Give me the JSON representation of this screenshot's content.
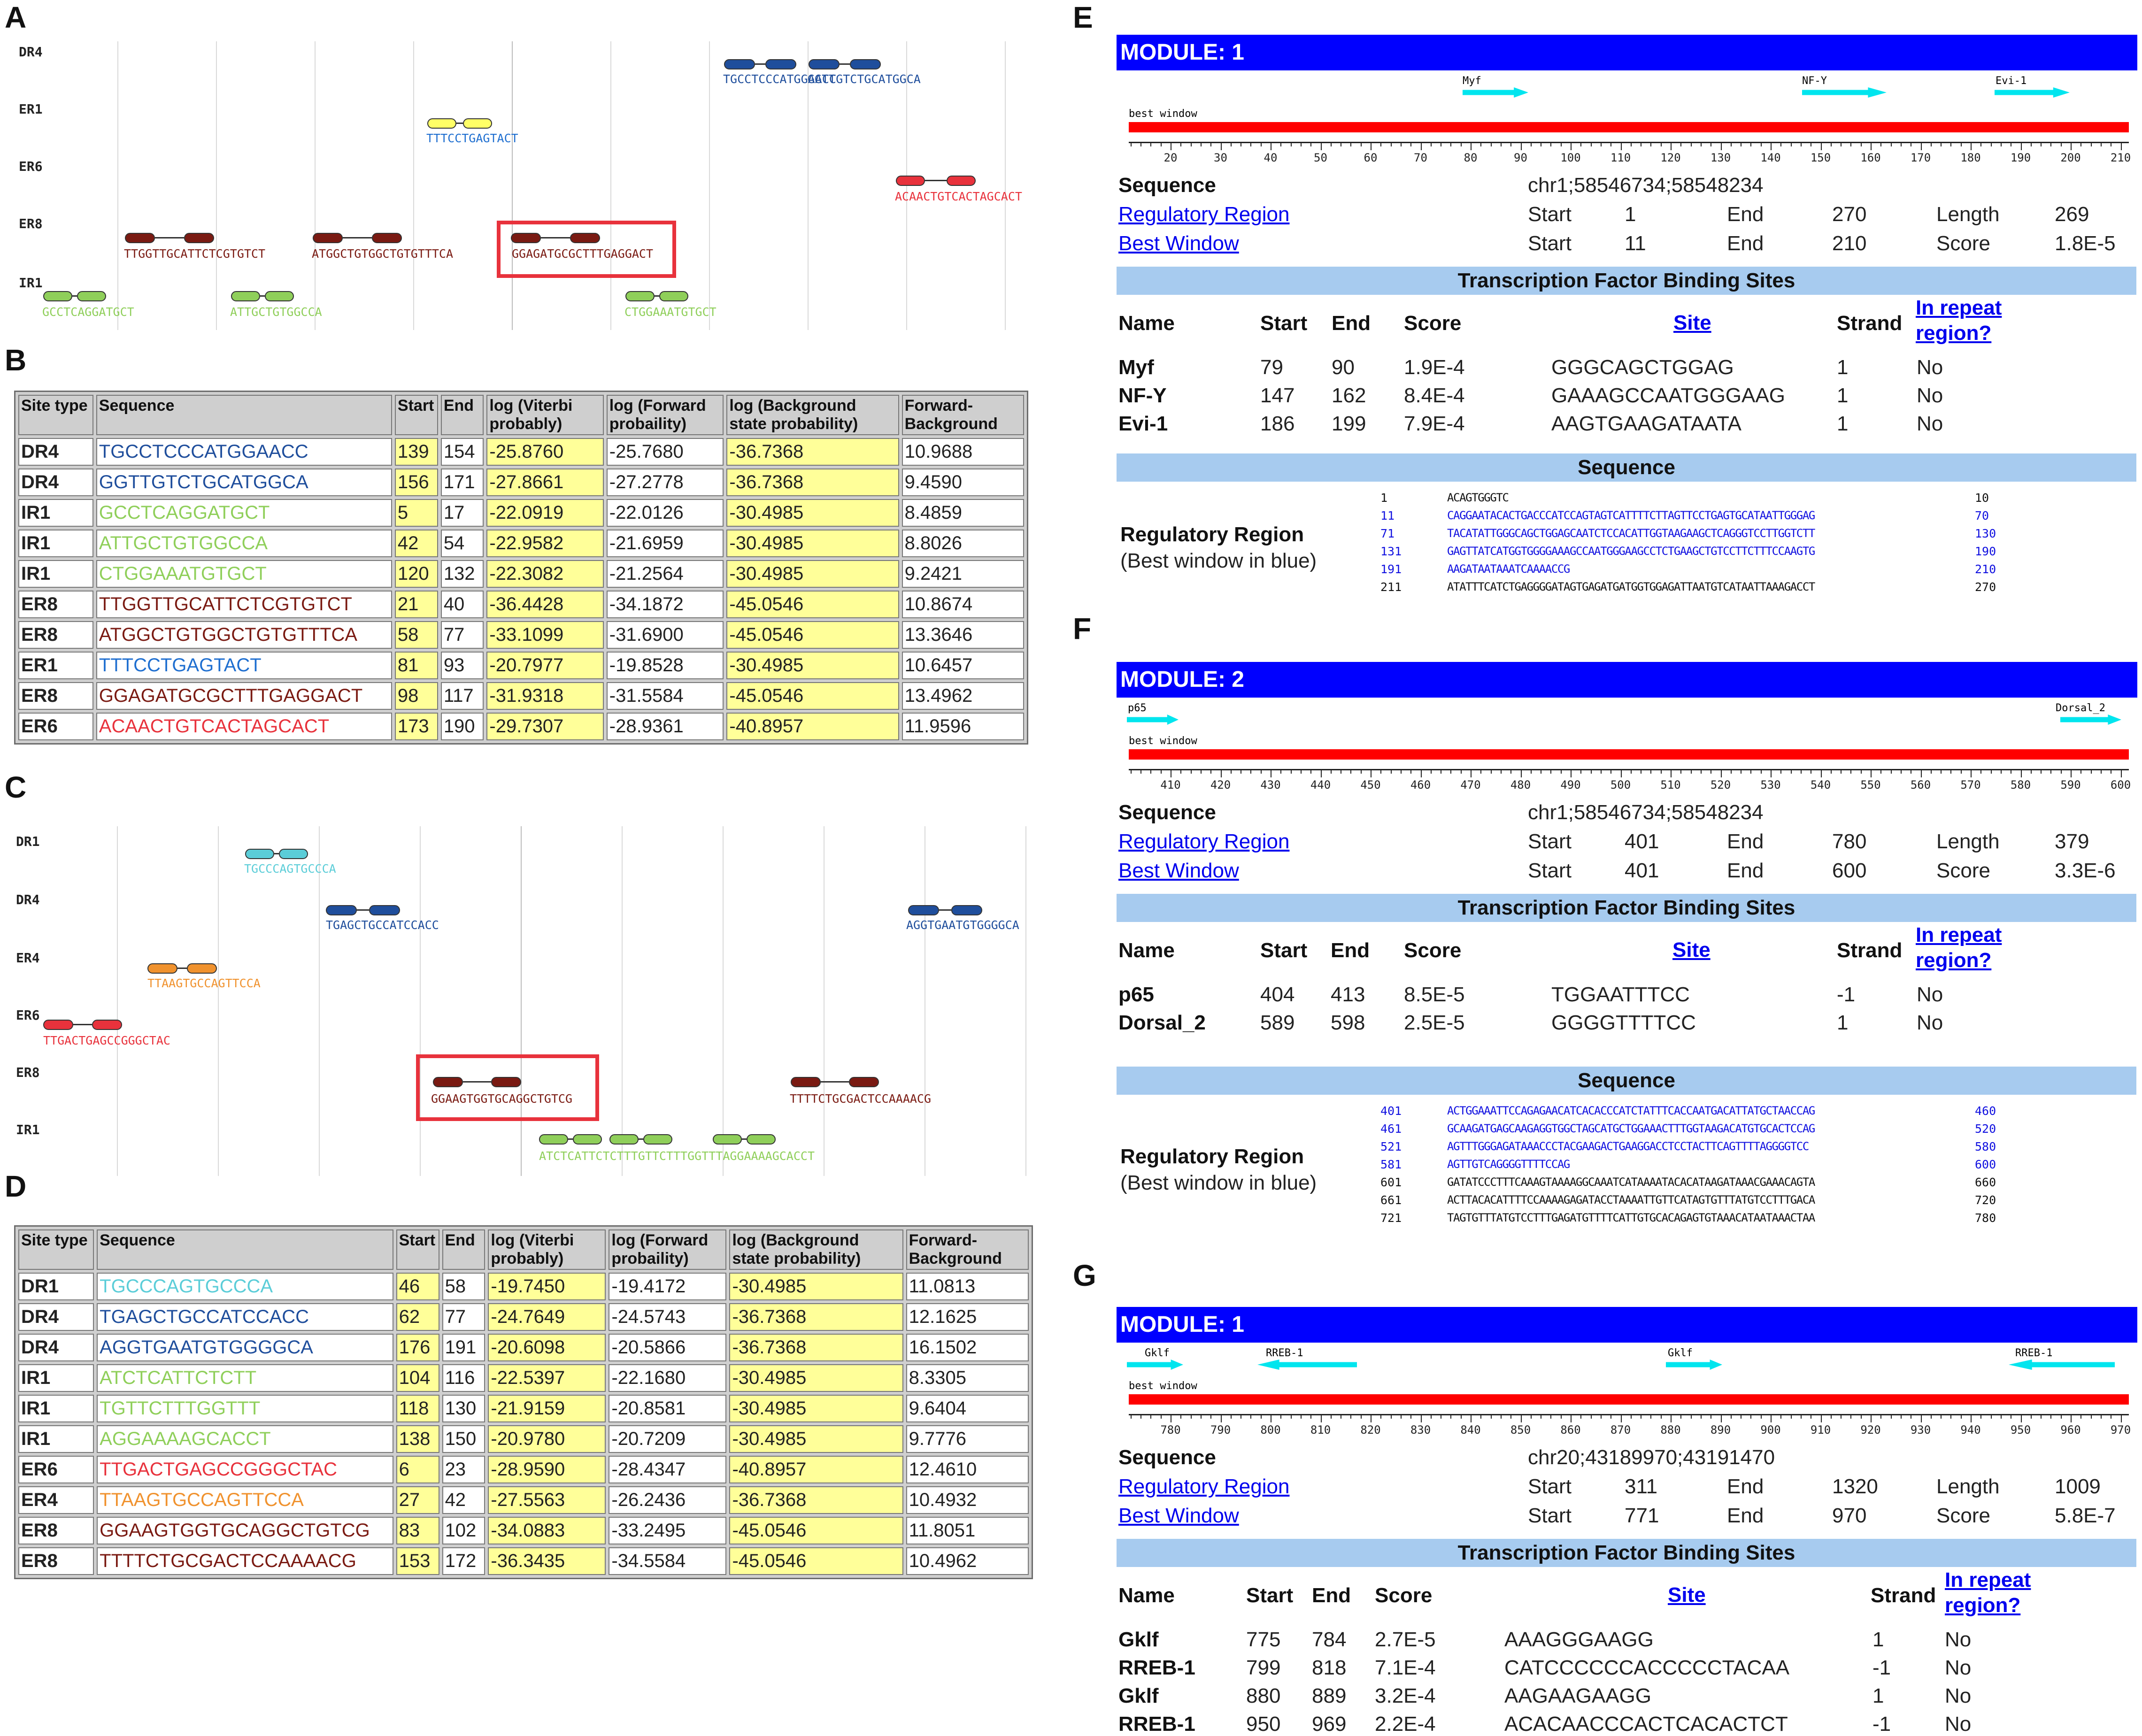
{
  "panels": {
    "A": "A",
    "B": "B",
    "C": "C",
    "D": "D",
    "E": "E",
    "F": "F",
    "G": "G"
  },
  "colors": {
    "blue_dark": "#1f4e9c",
    "green": "#8fcf5a",
    "red": "#e8323c",
    "maroon": "#7a1a12",
    "yellow": "#ffff66",
    "cyan": "#00e5ee",
    "orange": "#f0922e",
    "teal": "#5bcdd8"
  },
  "track_a": {
    "rows": [
      "DR4",
      "ER1",
      "ER6",
      "ER8",
      "IR1"
    ],
    "sites": [
      {
        "row": "DR4",
        "text": "TGCCTCCCATGGAACC",
        "color": "#1f4e9c"
      },
      {
        "row": "DR4",
        "text": "GGTTGTCTGCATGGCA",
        "color": "#1f4e9c"
      },
      {
        "row": "ER1",
        "text": "TTTCCTGAGTACT",
        "color": "#1f6fd0"
      },
      {
        "row": "ER6",
        "text": "ACAACTGTCACTAGCACT",
        "color": "#e8323c"
      },
      {
        "row": "ER8",
        "text": "TTGGTTGCATTCTCGTGTCT",
        "color": "#7a1a12"
      },
      {
        "row": "ER8",
        "text": "ATGGCTGTGGCTGTGTTTCA",
        "color": "#7a1a12"
      },
      {
        "row": "ER8",
        "text": "GGAGATGCGCTTTGAGGACT",
        "color": "#7a1a12"
      },
      {
        "row": "IR1",
        "text": "GCCTCAGGATGCT",
        "color": "#8fcf5a"
      },
      {
        "row": "IR1",
        "text": "ATTGCTGTGGCCA",
        "color": "#8fcf5a"
      },
      {
        "row": "IR1",
        "text": "CTGGAAATGTGCT",
        "color": "#8fcf5a"
      }
    ]
  },
  "table_b": {
    "headers": [
      "Site type",
      "Sequence",
      "Start",
      "End",
      "log (Viterbi probably)",
      "log (Forward probaility)",
      "log (Background state probability)",
      "Forward-Background"
    ],
    "rows": [
      {
        "type": "DR4",
        "seq": "TGCCTCCCATGGAACC",
        "color": "#1f4e9c",
        "start": "139",
        "end": "154",
        "vit": "-25.8760",
        "fwd": "-25.7680",
        "bg": "-36.7368",
        "fb": "10.9688"
      },
      {
        "type": "DR4",
        "seq": "GGTTGTCTGCATGGCA",
        "color": "#1f4e9c",
        "start": "156",
        "end": "171",
        "vit": "-27.8661",
        "fwd": "-27.2778",
        "bg": "-36.7368",
        "fb": "9.4590"
      },
      {
        "type": "IR1",
        "seq": "GCCTCAGGATGCT",
        "color": "#8fcf5a",
        "start": "5",
        "end": "17",
        "vit": "-22.0919",
        "fwd": "-22.0126",
        "bg": "-30.4985",
        "fb": "8.4859"
      },
      {
        "type": "IR1",
        "seq": "ATTGCTGTGGCCA",
        "color": "#8fcf5a",
        "start": "42",
        "end": "54",
        "vit": "-22.9582",
        "fwd": "-21.6959",
        "bg": "-30.4985",
        "fb": "8.8026"
      },
      {
        "type": "IR1",
        "seq": "CTGGAAATGTGCT",
        "color": "#8fcf5a",
        "start": "120",
        "end": "132",
        "vit": "-22.3082",
        "fwd": "-21.2564",
        "bg": "-30.4985",
        "fb": "9.2421"
      },
      {
        "type": "ER8",
        "seq": "TTGGTTGCATTCTCGTGTCT",
        "color": "#7a1a12",
        "start": "21",
        "end": "40",
        "vit": "-36.4428",
        "fwd": "-34.1872",
        "bg": "-45.0546",
        "fb": "10.8674"
      },
      {
        "type": "ER8",
        "seq": "ATGGCTGTGGCTGTGTTTCA",
        "color": "#7a1a12",
        "start": "58",
        "end": "77",
        "vit": "-33.1099",
        "fwd": "-31.6900",
        "bg": "-45.0546",
        "fb": "13.3646"
      },
      {
        "type": "ER1",
        "seq": "TTTCCTGAGTACT",
        "color": "#1f6fd0",
        "start": "81",
        "end": "93",
        "vit": "-20.7977",
        "fwd": "-19.8528",
        "bg": "-30.4985",
        "fb": "10.6457"
      },
      {
        "type": "ER8",
        "seq": "GGAGATGCGCTTTGAGGACT",
        "color": "#7a1a12",
        "start": "98",
        "end": "117",
        "vit": "-31.9318",
        "fwd": "-31.5584",
        "bg": "-45.0546",
        "fb": "13.4962"
      },
      {
        "type": "ER6",
        "seq": "ACAACTGTCACTAGCACT",
        "color": "#e8323c",
        "start": "173",
        "end": "190",
        "vit": "-29.7307",
        "fwd": "-28.9361",
        "bg": "-40.8957",
        "fb": "11.9596"
      }
    ]
  },
  "track_c": {
    "rows": [
      "DR1",
      "DR4",
      "ER4",
      "ER6",
      "ER8",
      "IR1"
    ],
    "sites": [
      {
        "row": "DR1",
        "text": "TGCCCAGTGCCCA",
        "color": "#5bcdd8"
      },
      {
        "row": "DR4",
        "text": "TGAGCTGCCATCCACC",
        "color": "#1f4e9c"
      },
      {
        "row": "DR4",
        "text": "AGGTGAATGTGGGGCA",
        "color": "#1f4e9c"
      },
      {
        "row": "ER4",
        "text": "TTAAGTGCCAGTTCCA",
        "color": "#f0922e"
      },
      {
        "row": "ER6",
        "text": "TTGACTGAGCCGGGCTAC",
        "color": "#e8323c"
      },
      {
        "row": "ER8",
        "text": "GGAAGTGGTGCAGGCTGTCG",
        "color": "#7a1a12"
      },
      {
        "row": "ER8",
        "text": "TTTTCTGCGACTCCAAAACG",
        "color": "#7a1a12"
      },
      {
        "row": "IR1",
        "text": "ATCTCATTCTCTTTGTTCTTTGGTTTAGGAAAAGCACCT",
        "color": "#8fcf5a"
      }
    ]
  },
  "table_d": {
    "headers": [
      "Site type",
      "Sequence",
      "Start",
      "End",
      "log (Viterbi probably)",
      "log (Forward probaility)",
      "log (Background state probability)",
      "Forward-Background"
    ],
    "rows": [
      {
        "type": "DR1",
        "seq": "TGCCCAGTGCCCA",
        "color": "#5bcdd8",
        "start": "46",
        "end": "58",
        "vit": "-19.7450",
        "fwd": "-19.4172",
        "bg": "-30.4985",
        "fb": "11.0813"
      },
      {
        "type": "DR4",
        "seq": "TGAGCTGCCATCCACC",
        "color": "#1f4e9c",
        "start": "62",
        "end": "77",
        "vit": "-24.7649",
        "fwd": "-24.5743",
        "bg": "-36.7368",
        "fb": "12.1625"
      },
      {
        "type": "DR4",
        "seq": "AGGTGAATGTGGGGCA",
        "color": "#1f4e9c",
        "start": "176",
        "end": "191",
        "vit": "-20.6098",
        "fwd": "-20.5866",
        "bg": "-36.7368",
        "fb": "16.1502"
      },
      {
        "type": "IR1",
        "seq": "ATCTCATTCTCTT",
        "color": "#8fcf5a",
        "start": "104",
        "end": "116",
        "vit": "-22.5397",
        "fwd": "-22.1680",
        "bg": "-30.4985",
        "fb": "8.3305"
      },
      {
        "type": "IR1",
        "seq": "TGTTCTTTGGTTT",
        "color": "#8fcf5a",
        "start": "118",
        "end": "130",
        "vit": "-21.9159",
        "fwd": "-20.8581",
        "bg": "-30.4985",
        "fb": "9.6404"
      },
      {
        "type": "IR1",
        "seq": "AGGAAAAGCACCT",
        "color": "#8fcf5a",
        "start": "138",
        "end": "150",
        "vit": "-20.9780",
        "fwd": "-20.7209",
        "bg": "-30.4985",
        "fb": "9.7776"
      },
      {
        "type": "ER6",
        "seq": "TTGACTGAGCCGGGCTAC",
        "color": "#e8323c",
        "start": "6",
        "end": "23",
        "vit": "-28.9590",
        "fwd": "-28.4347",
        "bg": "-40.8957",
        "fb": "12.4610"
      },
      {
        "type": "ER4",
        "seq": "TTAAGTGCCAGTTCCA",
        "color": "#f0922e",
        "start": "27",
        "end": "42",
        "vit": "-27.5563",
        "fwd": "-26.2436",
        "bg": "-36.7368",
        "fb": "10.4932"
      },
      {
        "type": "ER8",
        "seq": "GGAAGTGGTGCAGGCTGTCG",
        "color": "#7a1a12",
        "start": "83",
        "end": "102",
        "vit": "-34.0883",
        "fwd": "-33.2495",
        "bg": "-45.0546",
        "fb": "11.8051"
      },
      {
        "type": "ER8",
        "seq": "TTTTCTGCGACTCCAAAACG",
        "color": "#7a1a12",
        "start": "153",
        "end": "172",
        "vit": "-36.3435",
        "fwd": "-34.5584",
        "bg": "-45.0546",
        "fb": "10.4962"
      }
    ]
  },
  "module_e": {
    "title": "MODULE: 1",
    "best_window": "best window",
    "tf_labels": [
      "Myf",
      "NF-Y",
      "Evi-1"
    ],
    "ticks": [
      "20",
      "30",
      "40",
      "50",
      "60",
      "70",
      "80",
      "90",
      "100",
      "110",
      "120",
      "130",
      "140",
      "150",
      "160",
      "170",
      "180",
      "190",
      "200",
      "210"
    ],
    "sequence_label": "Sequence",
    "sequence_value": "chr1;58546734;58548234",
    "reg_link": "Regulatory Region",
    "best_link": "Best Window",
    "start_lbl": "Start",
    "end_lbl": "End",
    "length_lbl": "Length",
    "score_lbl": "Score",
    "reg_start": "1",
    "reg_end": "270",
    "reg_length": "269",
    "best_start": "11",
    "best_end": "210",
    "best_score": "1.8E-5",
    "tfbs_title": "Transcription Factor Binding Sites",
    "cols": {
      "name": "Name",
      "start": "Start",
      "end": "End",
      "score": "Score",
      "site": "Site",
      "strand": "Strand",
      "repeat1": "In repeat",
      "repeat2": "region?"
    },
    "rows": [
      {
        "name": "Myf",
        "start": "79",
        "end": "90",
        "score": "1.9E-4",
        "site": "GGGCAGCTGGAG",
        "strand": "1",
        "rep": "No"
      },
      {
        "name": "NF-Y",
        "start": "147",
        "end": "162",
        "score": "8.4E-4",
        "site": "GAAAGCCAATGGGAAG",
        "strand": "1",
        "rep": "No"
      },
      {
        "name": "Evi-1",
        "start": "186",
        "end": "199",
        "score": "7.9E-4",
        "site": "AAGTGAAGATAATA",
        "strand": "1",
        "rep": "No"
      }
    ],
    "seq_title": "Sequence",
    "rr_label": "Regulatory Region",
    "rr_sub": "(Best window in blue)",
    "seq_lines": [
      {
        "a": "1",
        "s": "ACAGTGGGTC",
        "b": "10",
        "blue": false
      },
      {
        "a": "11",
        "s": "CAGGAATACACTGACCCATCCAGTAGTCATTTTCTTAGTTCCTGAGTGCATAATTGGGAG",
        "b": "70",
        "blue": true
      },
      {
        "a": "71",
        "s": "TACATATTGGGCAGCTGGAGCAATCTCCACATTGGTAAGAAGCTCAGGGTCCTTGGTCTT",
        "b": "130",
        "blue": true
      },
      {
        "a": "131",
        "s": "GAGTTATCATGGTGGGGAAAGCCAATGGGAAGCCTCTGAAGCTGTCCTTCTTTCCAAGTG",
        "b": "190",
        "blue": true
      },
      {
        "a": "191",
        "s": "AAGATAATAAATCAAAACCG",
        "b": "210",
        "blue": true
      },
      {
        "a": "211",
        "s": "ATATTTCATCTGAGGGGATAGTGAGATGATGGTGGAGATTAATGTCATAATTAAAGACCT",
        "b": "270",
        "blue": false
      }
    ]
  },
  "module_f": {
    "title": "MODULE: 2",
    "best_window": "best window",
    "tf_labels": [
      "p65",
      "Dorsal_2"
    ],
    "ticks": [
      "410",
      "420",
      "430",
      "440",
      "450",
      "460",
      "470",
      "480",
      "490",
      "500",
      "510",
      "520",
      "530",
      "540",
      "550",
      "560",
      "570",
      "580",
      "590",
      "600"
    ],
    "sequence_label": "Sequence",
    "sequence_value": "chr1;58546734;58548234",
    "reg_link": "Regulatory Region",
    "best_link": "Best Window",
    "start_lbl": "Start",
    "end_lbl": "End",
    "length_lbl": "Length",
    "score_lbl": "Score",
    "reg_start": "401",
    "reg_end": "780",
    "reg_length": "379",
    "best_start": "401",
    "best_end": "600",
    "best_score": "3.3E-6",
    "tfbs_title": "Transcription Factor Binding Sites",
    "cols": {
      "name": "Name",
      "start": "Start",
      "end": "End",
      "score": "Score",
      "site": "Site",
      "strand": "Strand",
      "repeat1": "In repeat",
      "repeat2": "region?"
    },
    "rows": [
      {
        "name": "p65",
        "start": "404",
        "end": "413",
        "score": "8.5E-5",
        "site": "TGGAATTTCC",
        "strand": "-1",
        "rep": "No"
      },
      {
        "name": "Dorsal_2",
        "start": "589",
        "end": "598",
        "score": "2.5E-5",
        "site": "GGGGTTTTCC",
        "strand": "1",
        "rep": "No"
      }
    ],
    "seq_title": "Sequence",
    "rr_label": "Regulatory Region",
    "rr_sub": "(Best window in blue)",
    "seq_lines": [
      {
        "a": "401",
        "s": "ACTGGAAATTCCAGAGAACATCACACCCATCTATTTCACCAATGACATTATGCTAACCAG",
        "b": "460",
        "blue": true
      },
      {
        "a": "461",
        "s": "GCAAGATGAGCAAGAGGTGGCTAGCATGCTGGAAACTTTGGTAAGACATGTGCACTCCAG",
        "b": "520",
        "blue": true
      },
      {
        "a": "521",
        "s": "AGTTTGGGAGATAAACCCTACGAAGACTGAAGGACCTCCTACTTCAGTTTTAGGGGTCC",
        "b": "580",
        "blue": true
      },
      {
        "a": "581",
        "s": "AGTTGTCAGGGGTTTTCCAG",
        "b": "600",
        "blue": true
      },
      {
        "a": "601",
        "s": "GATATCCCTTTCAAAGTAAAAGGCAAATCATAAAATACACATAAGATAAACGAAACAGTA",
        "b": "660",
        "blue": false
      },
      {
        "a": "661",
        "s": "ACTTACACATTTTCCAAAAGAGATACCTAAAATTGTTCATAGTGTTTATGTCCTTTGACA",
        "b": "720",
        "blue": false
      },
      {
        "a": "721",
        "s": "TAGTGTTTATGTCCTTTGAGATGTTTTCATTGTGCACAGAGTGTAAACATAATAAACTAA",
        "b": "780",
        "blue": false
      }
    ]
  },
  "module_g": {
    "title": "MODULE: 1",
    "best_window": "best window",
    "tf_labels": [
      "Gklf",
      "RREB-1",
      "Gklf",
      "RREB-1"
    ],
    "ticks": [
      "780",
      "790",
      "800",
      "810",
      "820",
      "830",
      "840",
      "850",
      "860",
      "870",
      "880",
      "890",
      "900",
      "910",
      "920",
      "930",
      "940",
      "950",
      "960",
      "970"
    ],
    "sequence_label": "Sequence",
    "sequence_value": "chr20;43189970;43191470",
    "reg_link": "Regulatory Region",
    "best_link": "Best Window",
    "start_lbl": "Start",
    "end_lbl": "End",
    "length_lbl": "Length",
    "score_lbl": "Score",
    "reg_start": "311",
    "reg_end": "1320",
    "reg_length": "1009",
    "best_start": "771",
    "best_end": "970",
    "best_score": "5.8E-7",
    "tfbs_title": "Transcription Factor Binding Sites",
    "cols": {
      "name": "Name",
      "start": "Start",
      "end": "End",
      "score": "Score",
      "site": "Site",
      "strand": "Strand",
      "repeat1": "In repeat",
      "repeat2": "region?"
    },
    "rows": [
      {
        "name": "Gklf",
        "start": "775",
        "end": "784",
        "score": "2.7E-5",
        "site": "AAAGGGAAGG",
        "strand": "1",
        "rep": "No"
      },
      {
        "name": "RREB-1",
        "start": "799",
        "end": "818",
        "score": "7.1E-4",
        "site": "CATCCCCCCACCCCCTACAA",
        "strand": "-1",
        "rep": "No"
      },
      {
        "name": "Gklf",
        "start": "880",
        "end": "889",
        "score": "3.2E-4",
        "site": "AAGAAGAAGG",
        "strand": "1",
        "rep": "No"
      },
      {
        "name": "RREB-1",
        "start": "950",
        "end": "969",
        "score": "2.2E-4",
        "site": "ACACAACCCACTCACACTCT",
        "strand": "-1",
        "rep": "No"
      }
    ]
  }
}
